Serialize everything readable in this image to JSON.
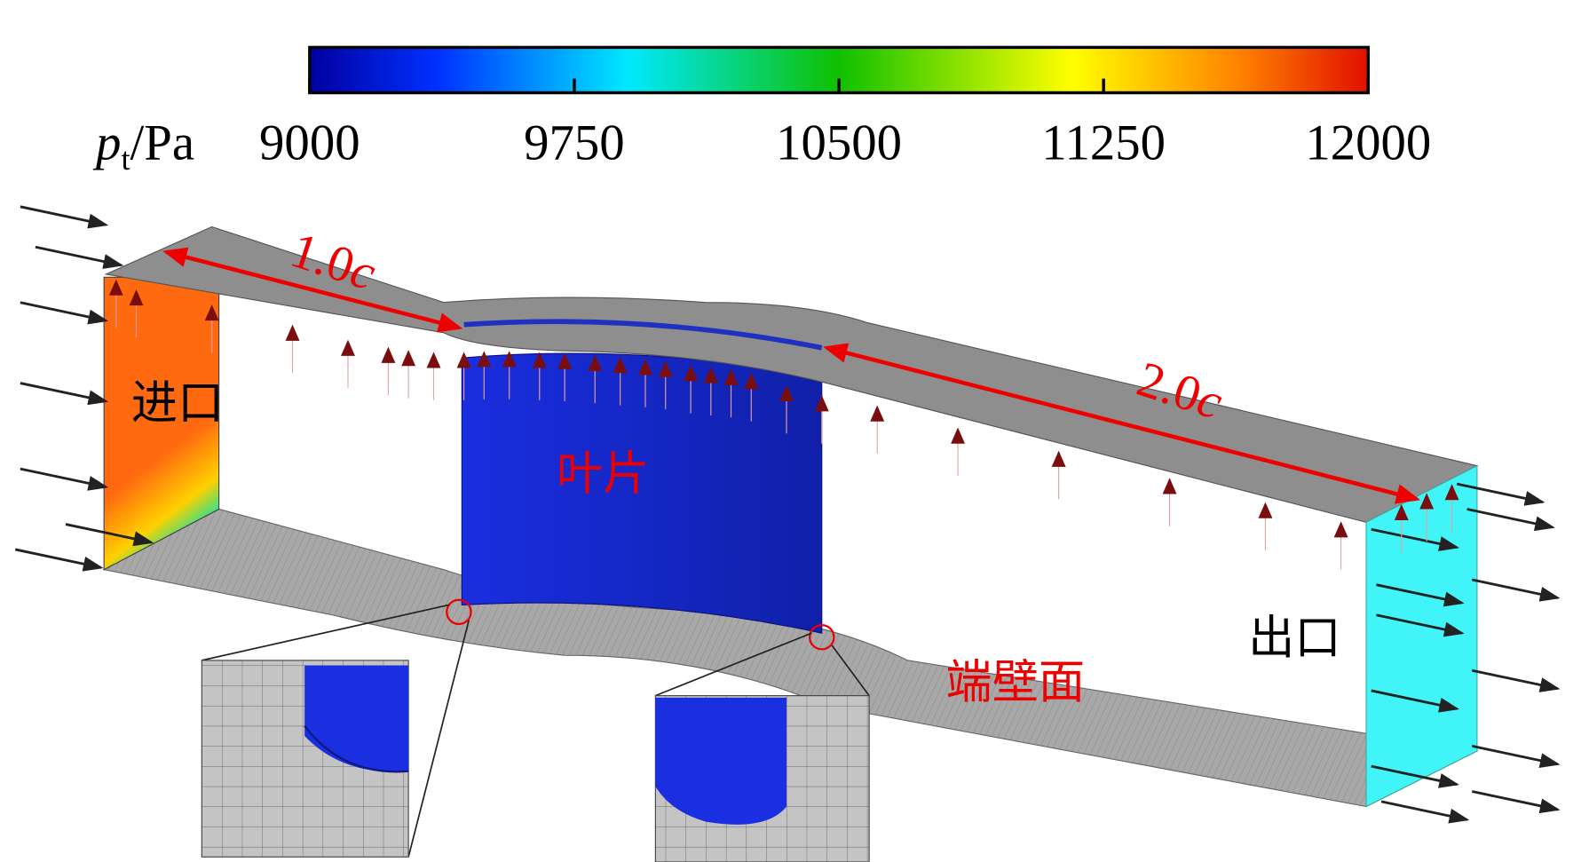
{
  "colorbar": {
    "label": {
      "symbol": "p",
      "subscript": "t",
      "unit": "/Pa"
    },
    "ticks": [
      9000,
      9750,
      10500,
      11250,
      12000
    ]
  },
  "dimensions": [
    {
      "value": "1.0",
      "unit": "c"
    },
    {
      "value": "2.0",
      "unit": "c"
    }
  ],
  "labels": {
    "inlet": "进口",
    "blade": "叶片",
    "outlet": "出口",
    "endwall": "端壁面"
  }
}
